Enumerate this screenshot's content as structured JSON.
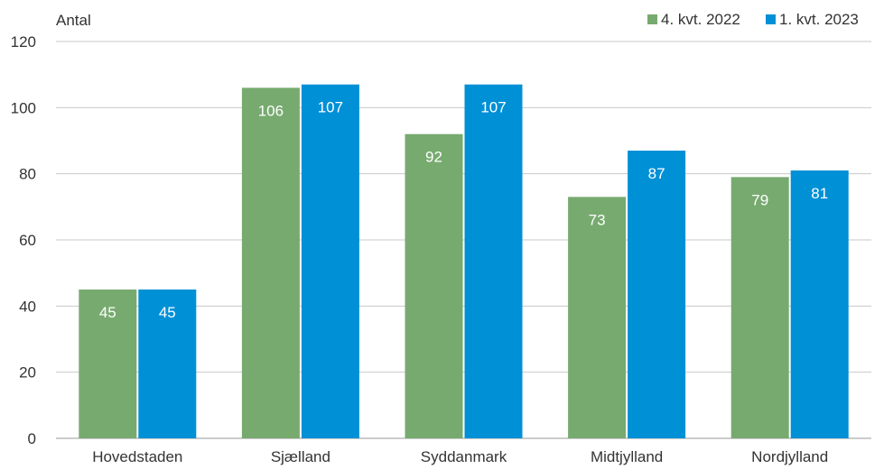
{
  "chart_data": {
    "type": "bar",
    "ylabel": "Antal",
    "ylim": [
      0,
      120
    ],
    "yticks": [
      0,
      20,
      40,
      60,
      80,
      100,
      120
    ],
    "grid": true,
    "legend_position": "top-right",
    "categories": [
      "Hovedstaden",
      "Sjælland",
      "Syddanmark",
      "Midtjylland",
      "Nordjylland"
    ],
    "series": [
      {
        "name": "4. kvt. 2022",
        "color": "#77aa6f",
        "values": [
          45,
          106,
          92,
          73,
          79
        ]
      },
      {
        "name": "1. kvt. 2023",
        "color": "#0090d6",
        "values": [
          45,
          107,
          107,
          87,
          81
        ]
      }
    ]
  }
}
